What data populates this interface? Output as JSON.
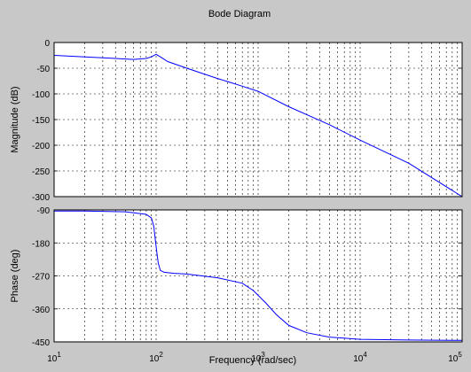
{
  "chart_data": {
    "type": "line",
    "title": "Bode Diagram",
    "xlabel": "Frequency (rad/sec)",
    "xscale": "log",
    "xlim": [
      10,
      100000
    ],
    "x_tick_labels": [
      {
        "base": "10",
        "exp": "1"
      },
      {
        "base": "10",
        "exp": "2"
      },
      {
        "base": "10",
        "exp": "3"
      },
      {
        "base": "10",
        "exp": "4"
      },
      {
        "base": "10",
        "exp": "5"
      }
    ],
    "grid": true,
    "background": "#c8c8c8",
    "plot_background": "#ffffff",
    "line_color": "#0000ff",
    "panels": [
      {
        "name": "magnitude",
        "ylabel": "Magnitude (dB)",
        "ylim": [
          -300,
          0
        ],
        "yticks": [
          0,
          -50,
          -100,
          -150,
          -200,
          -250,
          -300
        ],
        "y_tick_labels": [
          "0",
          "-50",
          "-100",
          "-150",
          "-200",
          "-250",
          "-300"
        ],
        "x": [
          10,
          20,
          40,
          60,
          80,
          90,
          100,
          110,
          130,
          200,
          400,
          700,
          1000,
          2000,
          5000,
          10000,
          30000,
          100000
        ],
        "y": [
          -25,
          -28,
          -31,
          -33,
          -31,
          -28,
          -23,
          -28,
          -37,
          -50,
          -70,
          -85,
          -95,
          -125,
          -160,
          -190,
          -235,
          -300
        ]
      },
      {
        "name": "phase",
        "ylabel": "Phase (deg)",
        "ylim": [
          -450,
          -90
        ],
        "yticks": [
          -90,
          -180,
          -270,
          -360,
          -450
        ],
        "y_tick_labels": [
          "-90",
          "-180",
          "-270",
          "-360",
          "-450"
        ],
        "x": [
          10,
          20,
          50,
          80,
          90,
          95,
          100,
          105,
          110,
          120,
          150,
          200,
          400,
          700,
          900,
          1200,
          1500,
          2000,
          3000,
          5000,
          10000,
          30000,
          100000
        ],
        "y": [
          -93,
          -93,
          -95,
          -102,
          -112,
          -135,
          -190,
          -235,
          -255,
          -260,
          -263,
          -265,
          -275,
          -290,
          -310,
          -345,
          -375,
          -405,
          -425,
          -437,
          -443,
          -445,
          -446
        ]
      }
    ]
  }
}
